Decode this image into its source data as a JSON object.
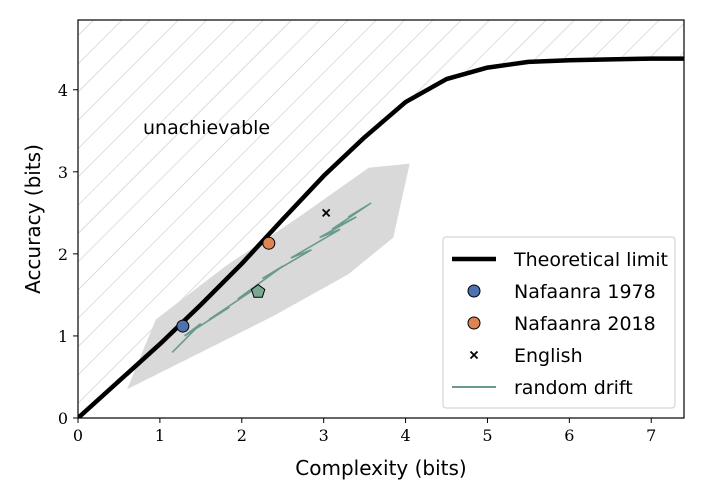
{
  "chart_data": {
    "type": "line",
    "xlabel": "Complexity (bits)",
    "ylabel": "Accuracy (bits)",
    "xlim": [
      0,
      7.4
    ],
    "ylim": [
      0,
      4.85
    ],
    "xticks": [
      0,
      1,
      2,
      3,
      4,
      5,
      6,
      7
    ],
    "yticks": [
      0,
      1,
      2,
      3,
      4
    ],
    "grid": false,
    "legend_position": "lower-right",
    "annotation": "unachievable",
    "colors": {
      "limit": "#000000",
      "nafaanra_1978": "#4c72b0",
      "nafaanra_2018": "#dd8452",
      "english": "#000000",
      "random_drift": "#6a9a8f",
      "drift_band": "#d9d9d9",
      "hatch": "#c8c8c8",
      "pentagon": "#7aa892"
    },
    "series": [
      {
        "name": "Theoretical limit",
        "kind": "line",
        "x": [
          0,
          0.5,
          1.0,
          1.5,
          2.0,
          2.5,
          3.0,
          3.5,
          4.0,
          4.5,
          5.0,
          5.5,
          6.0,
          6.5,
          7.0,
          7.4
        ],
        "y": [
          0,
          0.45,
          0.9,
          1.38,
          1.88,
          2.42,
          2.95,
          3.42,
          3.85,
          4.13,
          4.27,
          4.34,
          4.36,
          4.37,
          4.38,
          4.38
        ]
      },
      {
        "name": "Nafaanra 1978",
        "kind": "point",
        "x": [
          1.28
        ],
        "y": [
          1.12
        ]
      },
      {
        "name": "Nafaanra 2018",
        "kind": "point",
        "x": [
          2.33
        ],
        "y": [
          2.13
        ]
      },
      {
        "name": "English",
        "kind": "marker-x",
        "x": [
          3.03
        ],
        "y": [
          2.5
        ]
      },
      {
        "name": "random drift",
        "kind": "line",
        "x": [
          1.15,
          1.5,
          1.3,
          1.85,
          1.6,
          2.2,
          1.95,
          2.5,
          2.25,
          2.85,
          2.6,
          3.2,
          2.95,
          3.4,
          3.1,
          3.55,
          3.3,
          3.58
        ],
        "y": [
          0.8,
          1.15,
          1.0,
          1.35,
          1.2,
          1.6,
          1.45,
          1.85,
          1.7,
          2.05,
          1.95,
          2.3,
          2.2,
          2.45,
          2.3,
          2.6,
          2.45,
          2.62
        ]
      }
    ]
  }
}
